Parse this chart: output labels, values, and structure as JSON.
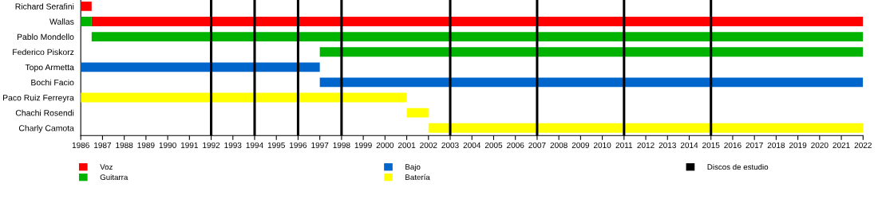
{
  "chart_data": {
    "type": "bar",
    "orientation": "horizontal",
    "categories": [
      "Richard Serafini",
      "Wallas",
      "Pablo Mondello",
      "Federico Piskorz",
      "Topo Armetta",
      "Bochi Facio",
      "Paco Ruiz Ferreyra",
      "Chachi Rosendi",
      "Charly Camota"
    ],
    "series": [
      {
        "name": "Voz",
        "color": "#ff0000",
        "base": [
          1986,
          1986.5,
          null,
          null,
          null,
          null,
          null,
          null,
          null
        ],
        "values": [
          0.5,
          35.5,
          null,
          null,
          null,
          null,
          null,
          null,
          null
        ]
      },
      {
        "name": "Guitarra",
        "color": "#00b300",
        "base": [
          null,
          1986,
          1986.5,
          1997,
          null,
          null,
          null,
          null,
          null
        ],
        "values": [
          null,
          0.5,
          35.5,
          25,
          null,
          null,
          null,
          null,
          null
        ]
      },
      {
        "name": "Bajo",
        "color": "#0066cc",
        "base": [
          null,
          null,
          null,
          null,
          1986,
          1997,
          null,
          null,
          null
        ],
        "values": [
          null,
          null,
          null,
          null,
          11,
          25,
          null,
          null,
          null
        ]
      },
      {
        "name": "Batería",
        "color": "#ffff00",
        "base": [
          null,
          null,
          null,
          null,
          null,
          null,
          1986,
          2001,
          2002
        ],
        "values": [
          null,
          null,
          null,
          null,
          null,
          null,
          15,
          1,
          20
        ]
      }
    ],
    "ref_lines": [
      {
        "axis": "x",
        "value": 1992,
        "label": "Discos de estudio",
        "color": "#000000"
      },
      {
        "axis": "x",
        "value": 1994,
        "color": "#000000"
      },
      {
        "axis": "x",
        "value": 1996,
        "color": "#000000"
      },
      {
        "axis": "x",
        "value": 1998,
        "color": "#000000"
      },
      {
        "axis": "x",
        "value": 2003,
        "color": "#000000"
      },
      {
        "axis": "x",
        "value": 2007,
        "color": "#000000"
      },
      {
        "axis": "x",
        "value": 2011,
        "color": "#000000"
      },
      {
        "axis": "x",
        "value": 2015,
        "color": "#000000"
      }
    ],
    "xlim": [
      1986,
      2022
    ],
    "xticks": [
      1986,
      1987,
      1988,
      1989,
      1990,
      1991,
      1992,
      1993,
      1994,
      1995,
      1996,
      1997,
      1998,
      1999,
      2000,
      2001,
      2002,
      2003,
      2004,
      2005,
      2006,
      2007,
      2008,
      2009,
      2010,
      2011,
      2012,
      2013,
      2014,
      2015,
      2016,
      2017,
      2018,
      2019,
      2020,
      2021,
      2022
    ],
    "grid": false,
    "legend": "bottom"
  }
}
